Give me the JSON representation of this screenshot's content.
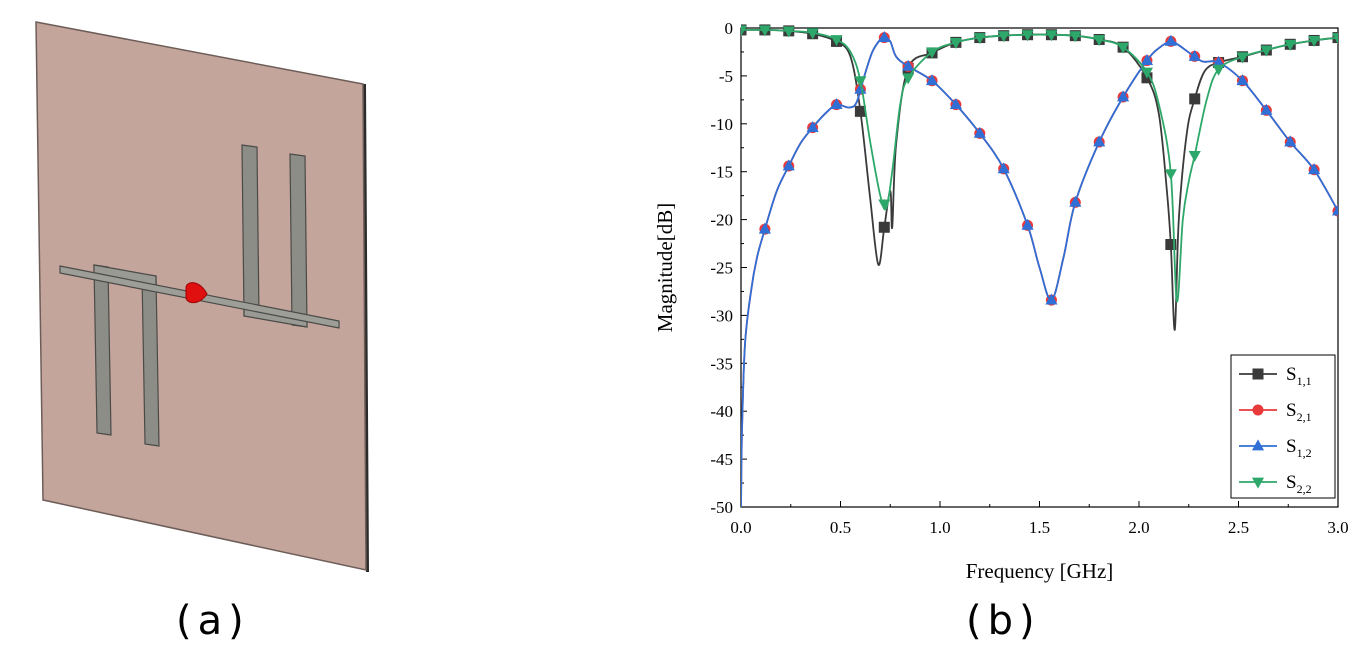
{
  "captions": {
    "a": "(a)",
    "b": "(b)"
  },
  "chart_data": {
    "type": "line",
    "xlabel": "Frequency [GHz]",
    "ylabel": "Magnitude[dB]",
    "xlim": [
      0,
      3
    ],
    "ylim": [
      -50,
      0
    ],
    "x_ticks": [
      0.0,
      0.5,
      1.0,
      1.5,
      2.0,
      2.5,
      3.0
    ],
    "x_tick_labels": [
      "0.0",
      "0.5",
      "1.0",
      "1.5",
      "2.0",
      "2.5",
      "3.0"
    ],
    "y_ticks": [
      0,
      -5,
      -10,
      -15,
      -20,
      -25,
      -30,
      -35,
      -40,
      -45,
      -50
    ],
    "y_tick_labels": [
      "0",
      "-5",
      "-10",
      "-15",
      "-20",
      "-25",
      "-30",
      "-35",
      "-40",
      "-45",
      "-50"
    ],
    "grid": false,
    "legend_position": "bottom-right",
    "series": [
      {
        "name": "S1,1",
        "label_main": "S",
        "label_sub": "1,1",
        "color": "#3a3a3a",
        "marker": "square",
        "x": [
          0.0,
          0.12,
          0.24,
          0.36,
          0.48,
          0.55,
          0.6,
          0.65,
          0.69,
          0.72,
          0.75,
          0.76,
          0.78,
          0.84,
          0.96,
          1.08,
          1.2,
          1.32,
          1.44,
          1.56,
          1.68,
          1.8,
          1.92,
          2.04,
          2.1,
          2.14,
          2.16,
          2.18,
          2.2,
          2.24,
          2.28,
          2.33,
          2.4,
          2.52,
          2.64,
          2.76,
          2.88,
          3.0
        ],
        "y": [
          -0.2,
          -0.2,
          -0.3,
          -0.6,
          -1.4,
          -3.0,
          -8.7,
          -18.0,
          -24.7,
          -20.8,
          -17.0,
          -20.8,
          -12.0,
          -4.2,
          -2.6,
          -1.5,
          -1.0,
          -0.8,
          -0.7,
          -0.7,
          -0.8,
          -1.2,
          -2.0,
          -5.2,
          -9.0,
          -17.0,
          -22.6,
          -31.5,
          -20.0,
          -11.0,
          -7.4,
          -4.5,
          -3.6,
          -3.0,
          -2.3,
          -1.7,
          -1.3,
          -1.0
        ],
        "marker_x": [
          0.0,
          0.12,
          0.24,
          0.36,
          0.48,
          0.6,
          0.72,
          0.84,
          0.96,
          1.08,
          1.2,
          1.32,
          1.44,
          1.56,
          1.68,
          1.8,
          1.92,
          2.04,
          2.16,
          2.28,
          2.4,
          2.52,
          2.64,
          2.76,
          2.88,
          3.0
        ]
      },
      {
        "name": "S2,1",
        "label_main": "S",
        "label_sub": "2,1",
        "color": "#e83a3a",
        "marker": "circle",
        "x": [
          0.0,
          0.005,
          0.02,
          0.05,
          0.08,
          0.12,
          0.18,
          0.24,
          0.3,
          0.36,
          0.42,
          0.48,
          0.54,
          0.58,
          0.62,
          0.66,
          0.7,
          0.72,
          0.75,
          0.78,
          0.84,
          0.96,
          1.08,
          1.2,
          1.32,
          1.44,
          1.5,
          1.56,
          1.62,
          1.68,
          1.8,
          1.92,
          2.04,
          2.1,
          2.16,
          2.2,
          2.26,
          2.32,
          2.4,
          2.52,
          2.64,
          2.76,
          2.88,
          3.0
        ],
        "y": [
          -50.0,
          -42.0,
          -33.0,
          -27.5,
          -24.0,
          -21.0,
          -17.0,
          -14.4,
          -12.0,
          -10.4,
          -9.0,
          -8.0,
          -8.3,
          -7.8,
          -5.0,
          -2.5,
          -1.2,
          -1.0,
          -1.4,
          -3.0,
          -4.0,
          -5.5,
          -8.0,
          -11.0,
          -14.7,
          -20.6,
          -25.0,
          -28.4,
          -24.0,
          -18.2,
          -11.9,
          -7.2,
          -3.4,
          -2.1,
          -1.4,
          -1.8,
          -2.7,
          -3.5,
          -3.6,
          -5.5,
          -8.6,
          -11.9,
          -14.8,
          -19.1
        ],
        "marker_x": [
          0.12,
          0.24,
          0.36,
          0.48,
          0.6,
          0.72,
          0.84,
          0.96,
          1.08,
          1.2,
          1.32,
          1.44,
          1.56,
          1.68,
          1.8,
          1.92,
          2.04,
          2.16,
          2.28,
          2.4,
          2.52,
          2.64,
          2.76,
          2.88,
          3.0
        ]
      },
      {
        "name": "S1,2",
        "label_main": "S",
        "label_sub": "1,2",
        "color": "#2f6fd6",
        "marker": "triangle-up",
        "x": [
          0.0,
          0.005,
          0.02,
          0.05,
          0.08,
          0.12,
          0.18,
          0.24,
          0.3,
          0.36,
          0.42,
          0.48,
          0.54,
          0.58,
          0.62,
          0.66,
          0.7,
          0.72,
          0.75,
          0.78,
          0.84,
          0.96,
          1.08,
          1.2,
          1.32,
          1.44,
          1.5,
          1.56,
          1.62,
          1.68,
          1.8,
          1.92,
          2.04,
          2.1,
          2.16,
          2.2,
          2.26,
          2.32,
          2.4,
          2.52,
          2.64,
          2.76,
          2.88,
          3.0
        ],
        "y": [
          -50.0,
          -42.0,
          -33.0,
          -27.5,
          -24.0,
          -21.0,
          -17.0,
          -14.4,
          -12.0,
          -10.4,
          -9.0,
          -8.0,
          -8.3,
          -7.8,
          -5.0,
          -2.5,
          -1.2,
          -1.0,
          -1.4,
          -3.0,
          -4.0,
          -5.5,
          -8.0,
          -11.0,
          -14.7,
          -20.6,
          -25.0,
          -28.4,
          -24.0,
          -18.2,
          -11.9,
          -7.2,
          -3.4,
          -2.1,
          -1.4,
          -1.8,
          -2.7,
          -3.5,
          -3.6,
          -5.5,
          -8.6,
          -11.9,
          -14.8,
          -19.1
        ],
        "marker_x": [
          0.12,
          0.24,
          0.36,
          0.48,
          0.6,
          0.72,
          0.84,
          0.96,
          1.08,
          1.2,
          1.32,
          1.44,
          1.56,
          1.68,
          1.8,
          1.92,
          2.04,
          2.16,
          2.28,
          2.4,
          2.52,
          2.64,
          2.76,
          2.88,
          3.0
        ]
      },
      {
        "name": "S2,2",
        "label_main": "S",
        "label_sub": "2,2",
        "color": "#2ea86a",
        "marker": "triangle-down",
        "x": [
          0.0,
          0.12,
          0.24,
          0.36,
          0.48,
          0.55,
          0.6,
          0.65,
          0.7,
          0.73,
          0.76,
          0.8,
          0.84,
          0.96,
          1.08,
          1.2,
          1.32,
          1.44,
          1.56,
          1.68,
          1.8,
          1.92,
          2.04,
          2.1,
          2.16,
          2.19,
          2.22,
          2.25,
          2.28,
          2.34,
          2.4,
          2.52,
          2.64,
          2.76,
          2.88,
          3.0
        ],
        "y": [
          -0.2,
          -0.2,
          -0.3,
          -0.5,
          -1.2,
          -2.5,
          -5.5,
          -12.0,
          -17.5,
          -18.8,
          -15.0,
          -8.0,
          -5.2,
          -2.5,
          -1.5,
          -1.0,
          -0.8,
          -0.7,
          -0.7,
          -0.8,
          -1.2,
          -2.0,
          -4.6,
          -8.0,
          -15.2,
          -28.5,
          -20.0,
          -16.0,
          -13.3,
          -7.5,
          -4.3,
          -3.0,
          -2.3,
          -1.7,
          -1.3,
          -1.0
        ],
        "marker_x": [
          0.0,
          0.12,
          0.24,
          0.36,
          0.48,
          0.6,
          0.72,
          0.84,
          0.96,
          1.08,
          1.2,
          1.32,
          1.44,
          1.56,
          1.68,
          1.8,
          1.92,
          2.04,
          2.16,
          2.28,
          2.4,
          2.52,
          2.64,
          2.76,
          2.88,
          3.0
        ]
      }
    ]
  }
}
